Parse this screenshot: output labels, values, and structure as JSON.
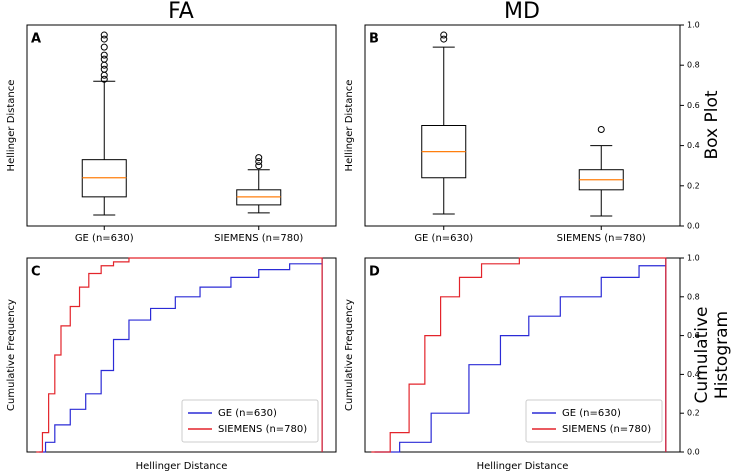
{
  "column_titles": [
    "FA",
    "MD"
  ],
  "row_titles": [
    [
      "Box Plot"
    ],
    [
      "Cumulative",
      "Histogram"
    ]
  ],
  "chart_data": [
    {
      "type": "box",
      "panel": "A",
      "ylabel": "Hellinger Distance",
      "categories": [
        "GE (n=630)",
        "SIEMENS (n=780)"
      ],
      "ylim": [
        0,
        1
      ],
      "boxes": [
        {
          "whislo": 0.055,
          "q1": 0.145,
          "med": 0.24,
          "q3": 0.33,
          "whishi": 0.72,
          "fliers": [
            0.73,
            0.75,
            0.78,
            0.8,
            0.83,
            0.85,
            0.89,
            0.93,
            0.95
          ]
        },
        {
          "whislo": 0.065,
          "q1": 0.105,
          "med": 0.145,
          "q3": 0.18,
          "whishi": 0.28,
          "fliers": [
            0.3,
            0.32,
            0.34
          ]
        }
      ]
    },
    {
      "type": "box",
      "panel": "B",
      "ylabel": "Hellinger Distance",
      "categories": [
        "GE (n=630)",
        "SIEMENS (n=780)"
      ],
      "ylim": [
        0,
        1
      ],
      "yticks": [
        {
          "value": 0,
          "label": "0.0"
        },
        {
          "value": 0.2,
          "label": "0.2"
        },
        {
          "value": 0.4,
          "label": "0.4"
        },
        {
          "value": 0.6,
          "label": "0.6"
        },
        {
          "value": 0.8,
          "label": "0.8"
        },
        {
          "value": 1,
          "label": "1.0"
        }
      ],
      "boxes": [
        {
          "whislo": 0.06,
          "q1": 0.24,
          "med": 0.37,
          "q3": 0.5,
          "whishi": 0.89,
          "fliers": [
            0.93,
            0.95
          ]
        },
        {
          "whislo": 0.05,
          "q1": 0.18,
          "med": 0.23,
          "q3": 0.28,
          "whishi": 0.4,
          "fliers": [
            0.48
          ]
        }
      ]
    },
    {
      "type": "step",
      "panel": "C",
      "ylabel": "Cumulative Frequency",
      "xlabel": "Hellinger Distance",
      "xlim": [
        0,
        1
      ],
      "ylim": [
        0,
        1
      ],
      "legend": "lower right",
      "series": [
        {
          "name": "GE (n=630)",
          "color": "#2b2bd6",
          "x": [
            0.04,
            0.06,
            0.09,
            0.14,
            0.19,
            0.24,
            0.28,
            0.33,
            0.4,
            0.48,
            0.56,
            0.66,
            0.75,
            0.85,
            0.955,
            0.955
          ],
          "values": [
            0,
            0.05,
            0.14,
            0.22,
            0.3,
            0.42,
            0.58,
            0.68,
            0.74,
            0.8,
            0.85,
            0.9,
            0.94,
            0.97,
            1,
            0
          ]
        },
        {
          "name": "SIEMENS (n=780)",
          "color": "#e3242b",
          "x": [
            0.03,
            0.05,
            0.07,
            0.09,
            0.11,
            0.14,
            0.17,
            0.2,
            0.24,
            0.28,
            0.33,
            0.955,
            0.955
          ],
          "values": [
            0,
            0.1,
            0.3,
            0.5,
            0.65,
            0.75,
            0.85,
            0.92,
            0.96,
            0.98,
            1,
            1,
            0
          ]
        }
      ]
    },
    {
      "type": "step",
      "panel": "D",
      "ylabel": "Cumulative Frequency",
      "xlabel": "Hellinger Distance",
      "xlim": [
        0,
        1
      ],
      "ylim": [
        0,
        1
      ],
      "legend": "lower right",
      "yticks": [
        {
          "value": 0,
          "label": "0.0"
        },
        {
          "value": 0.2,
          "label": "0.2"
        },
        {
          "value": 0.4,
          "label": "0.4"
        },
        {
          "value": 0.6,
          "label": "0.6"
        },
        {
          "value": 0.8,
          "label": "0.8"
        },
        {
          "value": 1,
          "label": "1.0"
        }
      ],
      "series": [
        {
          "name": "GE (n=630)",
          "color": "#2b2bd6",
          "x": [
            0.03,
            0.11,
            0.21,
            0.33,
            0.43,
            0.52,
            0.62,
            0.75,
            0.87,
            0.955,
            0.955
          ],
          "values": [
            0,
            0.05,
            0.2,
            0.45,
            0.6,
            0.7,
            0.8,
            0.9,
            0.96,
            1,
            0
          ]
        },
        {
          "name": "SIEMENS (n=780)",
          "color": "#e3242b",
          "x": [
            0.02,
            0.08,
            0.14,
            0.19,
            0.24,
            0.3,
            0.37,
            0.49,
            0.955,
            0.955
          ],
          "values": [
            0,
            0.1,
            0.35,
            0.6,
            0.8,
            0.9,
            0.97,
            1,
            1,
            0
          ]
        }
      ]
    }
  ]
}
